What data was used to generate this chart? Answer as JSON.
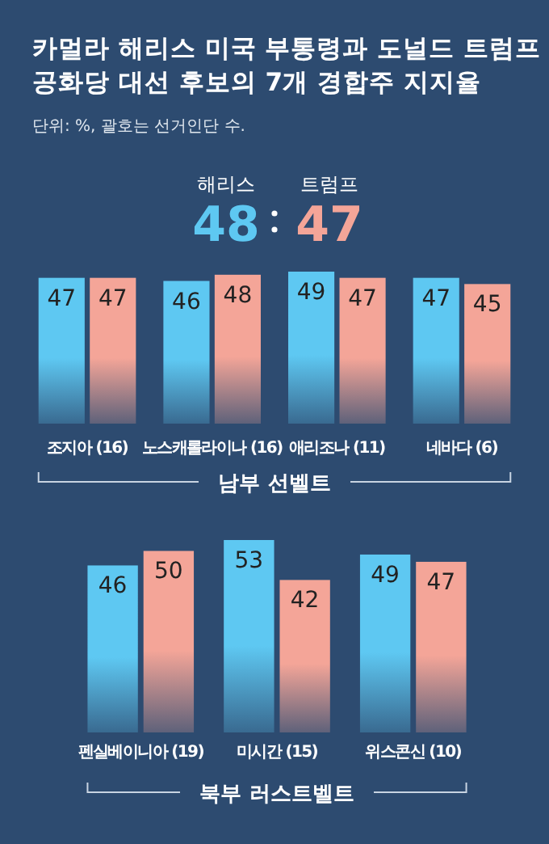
{
  "chart_data": [
    {
      "type": "bar",
      "title": "카멀라 해리스 미국 부통령과 도널드 트럼프 공화당 대선 후보의 7개 경합주 지지율",
      "subtitle": "단위: %, 괄호는 선거인단 수.",
      "xlabel": "남부 선벨트",
      "categories": [
        "조지아 (16)",
        "노스캐롤라이나 (16)",
        "애리조나 (11)",
        "네바다 (6)"
      ],
      "series": [
        {
          "color": "#5ec8f2",
          "values": [
            47,
            46,
            49,
            47
          ]
        },
        {
          "color": "#f4a598",
          "values": [
            47,
            48,
            47,
            45
          ]
        }
      ],
      "annotations": [
        "해리스",
        "48",
        "트럼프",
        "47"
      ],
      "tick_labels": "x",
      "data_labels": true
    },
    {
      "type": "bar",
      "xlabel": "북부 러스트벨트",
      "categories": [
        "펜실베이니아 (19)",
        "미시간 (15)",
        "위스콘신 (10)"
      ],
      "series": [
        {
          "color": "#5ec8f2",
          "values": [
            46,
            53,
            49
          ]
        },
        {
          "color": "#f4a598",
          "values": [
            50,
            42,
            47
          ]
        }
      ],
      "tick_labels": "x",
      "data_labels": true
    }
  ]
}
